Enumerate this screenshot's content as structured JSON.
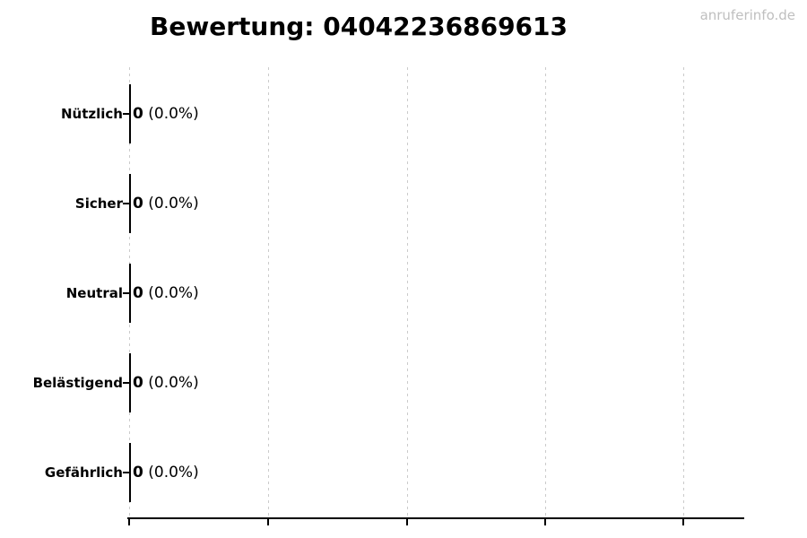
{
  "watermark": {
    "text": "anruferinfo.de",
    "color": "#bfbfbf"
  },
  "chart_data": {
    "type": "bar",
    "orientation": "horizontal",
    "title": "Bewertung: 04042236869613",
    "categories": [
      "Nützlich",
      "Sicher",
      "Neutral",
      "Belästigend",
      "Gefährlich"
    ],
    "values": [
      0,
      0,
      0,
      0,
      0
    ],
    "value_labels": [
      "0 (0.0%)",
      "0 (0.0%)",
      "0 (0.0%)",
      "0 (0.0%)",
      "0 (0.0%)"
    ],
    "rows": [
      {
        "label": "Nützlich",
        "count": "0",
        "percent": "(0.0%)"
      },
      {
        "label": "Sicher",
        "count": "0",
        "percent": "(0.0%)"
      },
      {
        "label": "Neutral",
        "count": "0",
        "percent": "(0.0%)"
      },
      {
        "label": "Belästigend",
        "count": "0",
        "percent": "(0.0%)"
      },
      {
        "label": "Gefährlich",
        "count": "0",
        "percent": "(0.0%)"
      }
    ],
    "xlabel": "",
    "ylabel": "",
    "x_tick_labels": [],
    "grid": "vertical-dashed",
    "legend": "none",
    "colors": {
      "grid": "#cbcbcb",
      "axis": "#000000",
      "text": "#000000",
      "bar_edge": "#000000",
      "watermark": "#bfbfbf"
    }
  }
}
